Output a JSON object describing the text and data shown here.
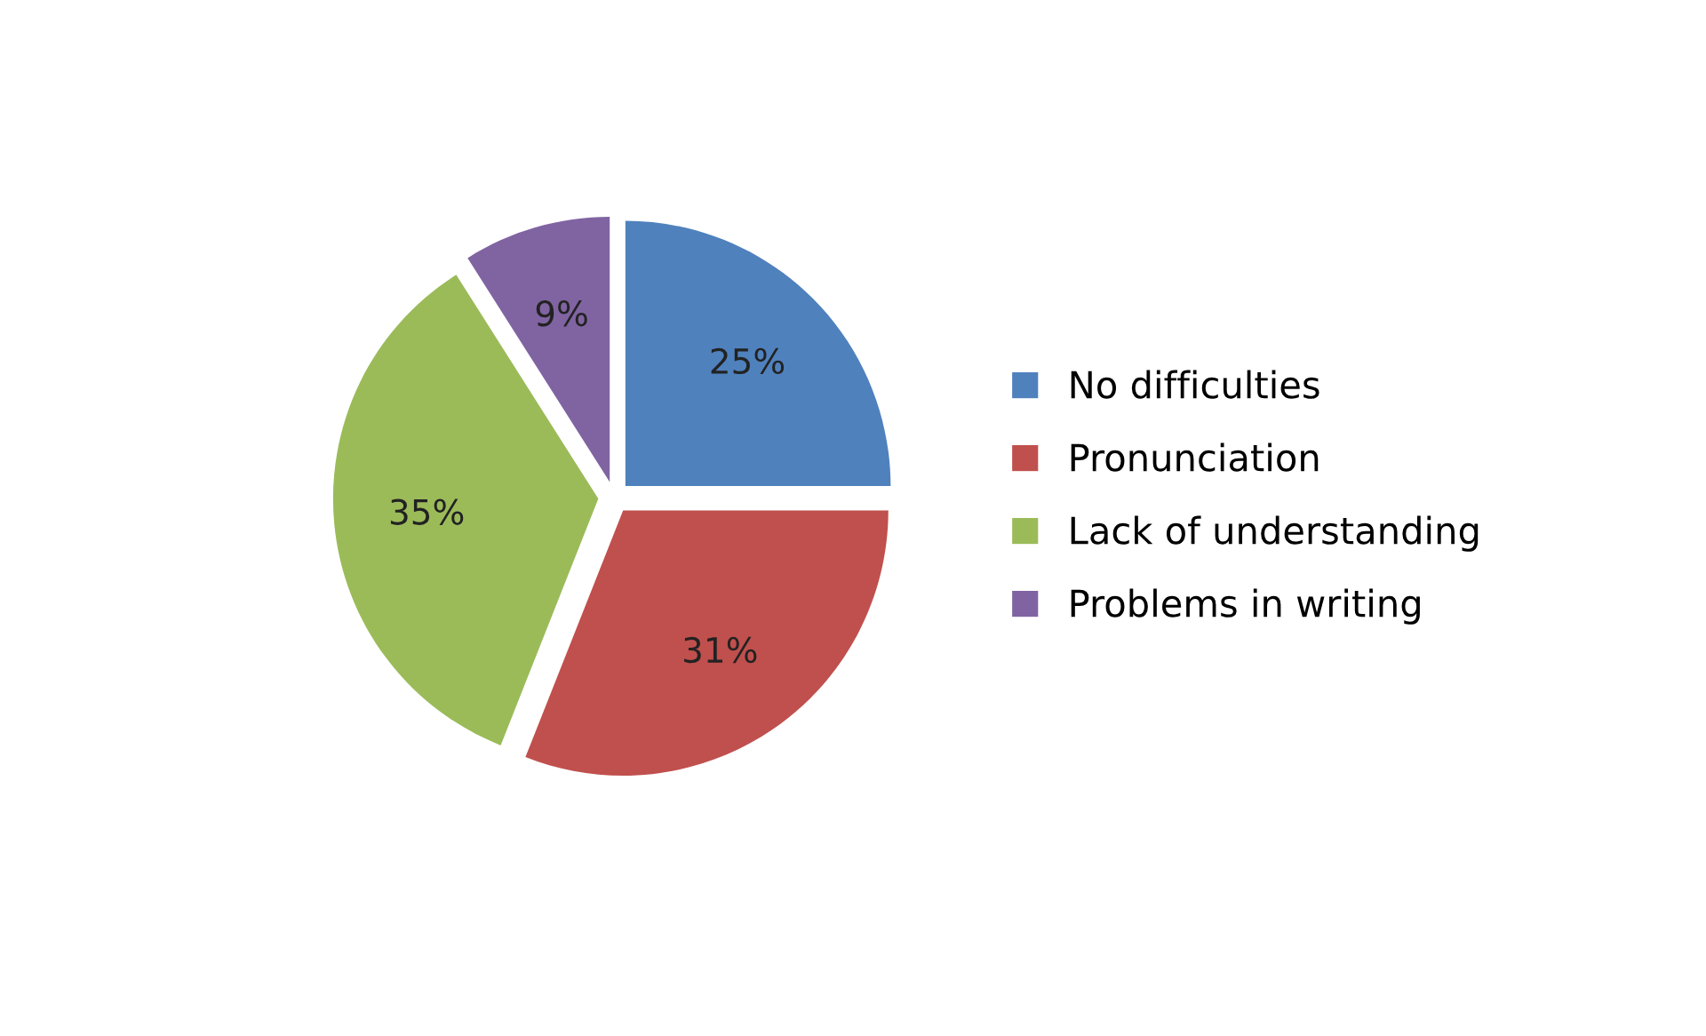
{
  "chart_data": {
    "type": "pie",
    "categories": [
      "No difficulties",
      "Pronunciation",
      "Lack of understanding",
      "Problems in writing"
    ],
    "values": [
      25,
      31,
      35,
      9
    ],
    "colors": [
      "#4f81bd",
      "#c0504d",
      "#9bbb59",
      "#8064a2"
    ],
    "value_labels": [
      "25%",
      "31%",
      "35%",
      "9%"
    ],
    "legend": "right"
  }
}
